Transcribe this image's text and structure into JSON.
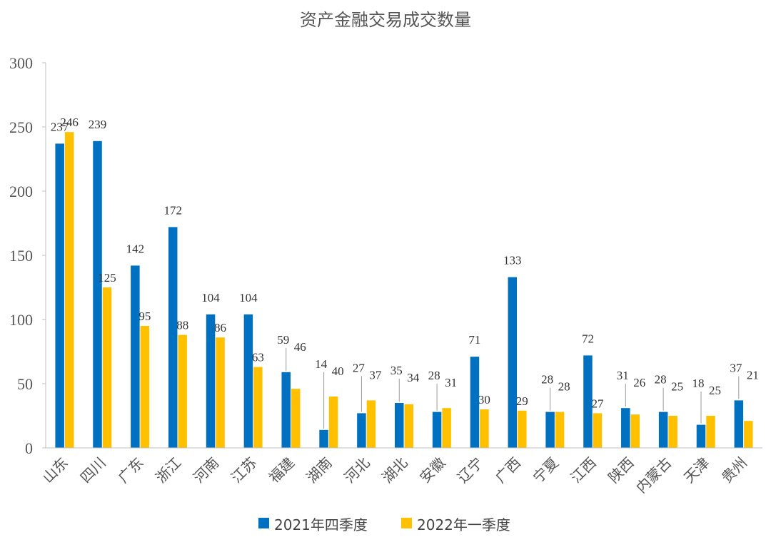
{
  "chart_data": {
    "type": "bar",
    "title": "资产金融交易成交数量",
    "categories": [
      "山东",
      "四川",
      "广东",
      "浙江",
      "河南",
      "江苏",
      "福建",
      "湖南",
      "河北",
      "湖北",
      "安徽",
      "辽宁",
      "广西",
      "宁夏",
      "江西",
      "陕西",
      "内蒙古",
      "天津",
      "贵州"
    ],
    "series": [
      {
        "name": "2021年四季度",
        "color": "#0070C0",
        "values": [
          237,
          239,
          142,
          172,
          104,
          104,
          59,
          14,
          27,
          35,
          28,
          71,
          133,
          28,
          72,
          31,
          28,
          18,
          37
        ]
      },
      {
        "name": "2022年一季度",
        "color": "#FFC000",
        "values": [
          246,
          125,
          95,
          88,
          86,
          63,
          46,
          40,
          37,
          34,
          31,
          30,
          29,
          28,
          27,
          26,
          25,
          25,
          21
        ]
      }
    ],
    "ylim": [
      0,
      300
    ],
    "yticks": [
      0,
      50,
      100,
      150,
      200,
      250,
      300
    ],
    "grid": false,
    "legend": "bottom-center"
  }
}
